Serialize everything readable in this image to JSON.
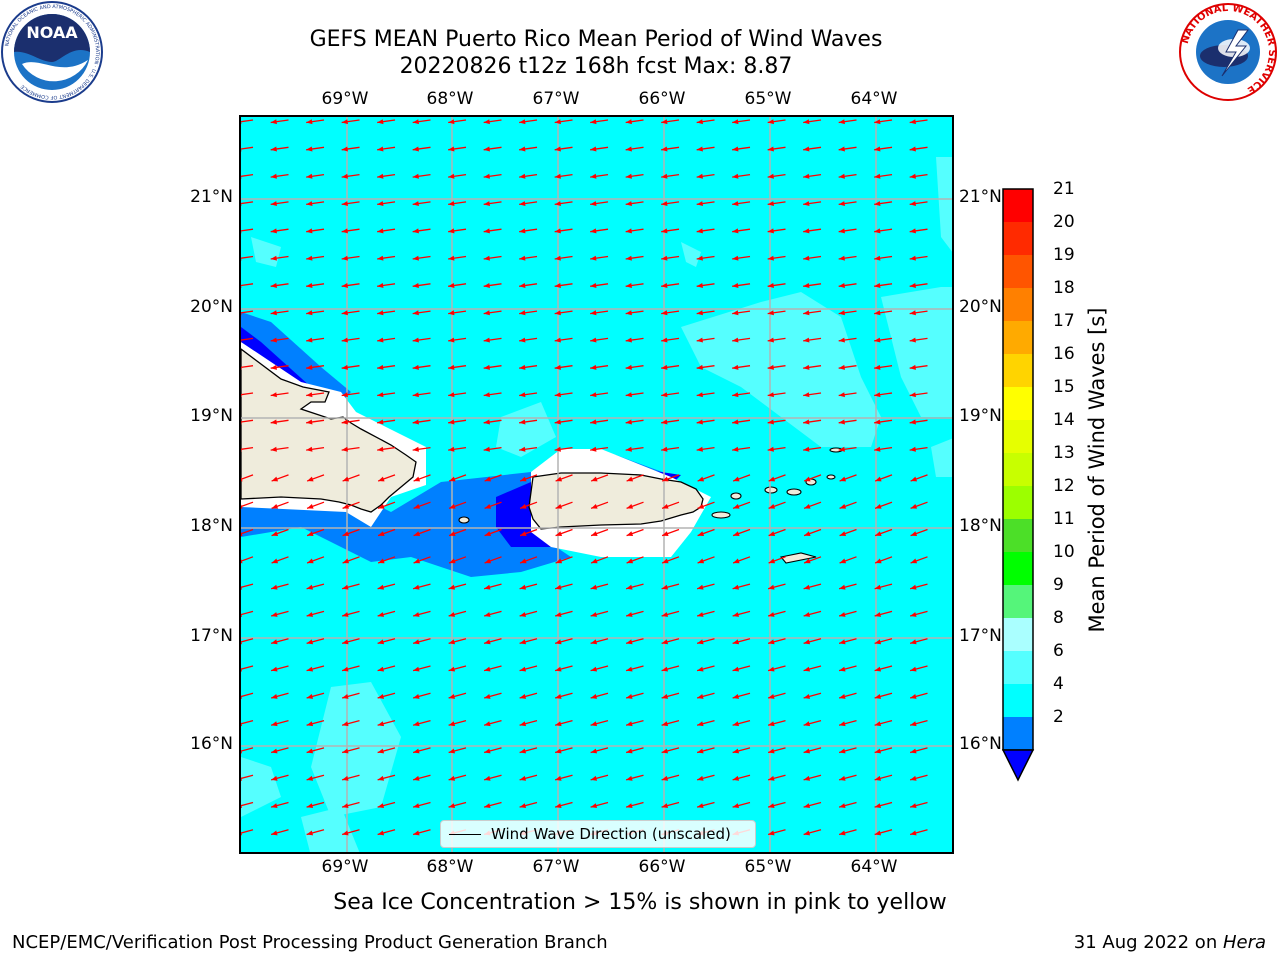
{
  "header": {
    "title_line1": "GEFS MEAN Puerto Rico Mean Period of Wind Waves",
    "title_line2": "20220826 t12z 168h fcst   Max: 8.87"
  },
  "logos": {
    "noaa_text": "NOAA",
    "noaa_ring_text": "NATIONAL OCEANIC AND ATMOSPHERIC ADMINISTRATION · U.S. DEPARTMENT OF COMMERCE",
    "nws_ring_text": "NATIONAL WEATHER SERVICE"
  },
  "map": {
    "lon_labels": [
      "69°W",
      "68°W",
      "67°W",
      "66°W",
      "65°W",
      "64°W"
    ],
    "lat_labels": [
      "21°N",
      "20°N",
      "19°N",
      "18°N",
      "17°N",
      "16°N"
    ],
    "legend_label": "Wind Wave Direction (unscaled)",
    "ocean_color": "#00ffff",
    "land_color": "#efecdc",
    "arrow_color": "#ff0000"
  },
  "colorbar": {
    "label": "Mean Period of Wind Waves [s]",
    "ticks": [
      "21",
      "20",
      "19",
      "18",
      "17",
      "16",
      "15",
      "14",
      "13",
      "12",
      "11",
      "10",
      "9",
      "8",
      "6",
      "4",
      "2"
    ],
    "colors": [
      "#ff0000",
      "#ff2a00",
      "#ff5500",
      "#ff8000",
      "#ffaa00",
      "#ffd400",
      "#ffff00",
      "#e6ff00",
      "#c8ff00",
      "#9cff00",
      "#4cdf28",
      "#00ff00",
      "#55f57a",
      "#aaffff",
      "#55ffff",
      "#00ffff",
      "#0080ff"
    ],
    "under_color": "#0000ff"
  },
  "footer": {
    "subtitle": "Sea Ice Concentration > 15% is shown in pink to yellow",
    "left": "NCEP/EMC/Verification Post Processing Product Generation Branch",
    "right_date": "31 Aug 2022 on ",
    "right_host": "Hera"
  }
}
